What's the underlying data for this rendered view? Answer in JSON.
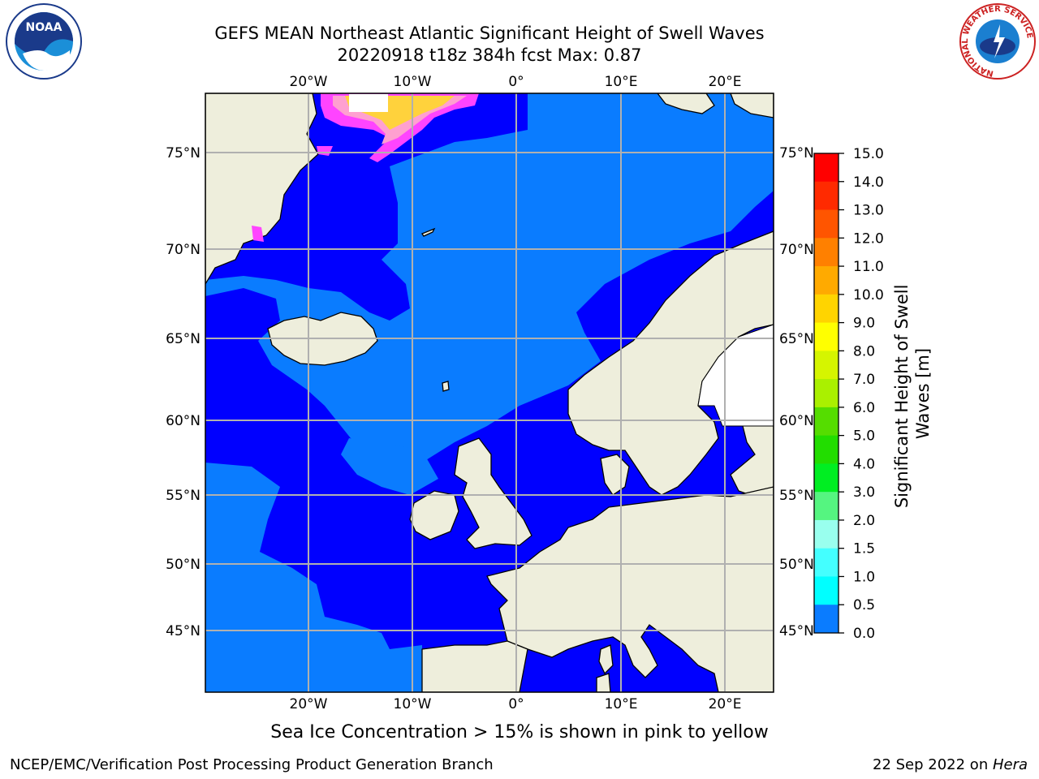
{
  "header": {
    "title_line1": "GEFS MEAN Northeast Atlantic Significant Height of Swell Waves",
    "title_line2": "20220918 t18z 384h fcst   Max: 0.87"
  },
  "logos": {
    "left": "NOAA",
    "right_ring": "NATIONAL WEATHER SERVICE"
  },
  "map": {
    "lon_labels": [
      "20°W",
      "10°W",
      "0°",
      "10°E",
      "20°E"
    ],
    "lat_labels": [
      "75°N",
      "70°N",
      "65°N",
      "60°N",
      "55°N",
      "50°N",
      "45°N"
    ],
    "colors": {
      "ocean_low": "#0000ff",
      "ocean_mid": "#0a7cff",
      "land": "#eeeedc",
      "grid": "#b0b0b0",
      "ice_pink": "#ff44ff",
      "ice_yellow": "#ffd23c"
    }
  },
  "colorbar": {
    "label": "Significant Height of Swell Waves [m]",
    "ticks": [
      "15.0",
      "14.0",
      "13.0",
      "12.0",
      "11.0",
      "10.0",
      "9.0",
      "8.0",
      "7.0",
      "6.0",
      "5.0",
      "4.0",
      "3.0",
      "2.0",
      "1.5",
      "1.0",
      "0.5",
      "0.0"
    ],
    "bands_top_to_bottom": [
      "#ff0000",
      "#ff2a00",
      "#ff5500",
      "#ff8000",
      "#ffaa00",
      "#ffd400",
      "#ffff00",
      "#d5f500",
      "#aaf000",
      "#55dd00",
      "#22dd00",
      "#00ee22",
      "#55f580",
      "#99ffee",
      "#44ffff",
      "#00ffff",
      "#0a7cff",
      "#0000ff"
    ]
  },
  "note": "Sea Ice Concentration > 15% is shown in pink to yellow",
  "footer": {
    "left": "NCEP/EMC/Verification Post Processing Product Generation Branch",
    "right_date": "22 Sep 2022 on ",
    "right_host": "Hera"
  }
}
